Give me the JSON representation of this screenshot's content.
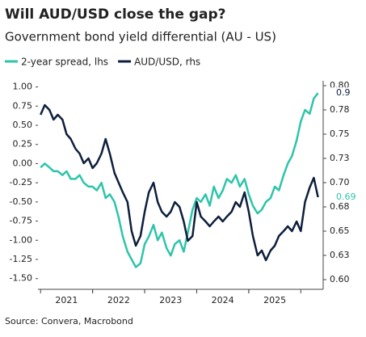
{
  "chart_data": {
    "type": "line",
    "title": "Will AUD/USD close the gap?",
    "subtitle": "Government bond yield differential (AU - US)",
    "source": "Source: Convera, Macrobond",
    "x": [
      2021,
      2021.08,
      2021.17,
      2021.25,
      2021.33,
      2021.42,
      2021.5,
      2021.58,
      2021.67,
      2021.75,
      2021.83,
      2021.92,
      2022,
      2022.08,
      2022.17,
      2022.25,
      2022.33,
      2022.42,
      2022.5,
      2022.58,
      2022.67,
      2022.75,
      2022.83,
      2022.92,
      2023,
      2023.08,
      2023.17,
      2023.25,
      2023.33,
      2023.42,
      2023.5,
      2023.58,
      2023.67,
      2023.75,
      2023.83,
      2023.92,
      2024,
      2024.08,
      2024.17,
      2024.25,
      2024.33,
      2024.42,
      2024.5,
      2024.58,
      2024.67,
      2024.75,
      2024.83,
      2024.92,
      2025,
      2025.08,
      2025.17,
      2025.25,
      2025.33,
      2025.42,
      2025.5,
      2025.58,
      2025.67,
      2025.75,
      2025.83,
      2025.92,
      2026,
      2026.08,
      2026.17,
      2026.25,
      2026.33
    ],
    "series": [
      {
        "name": "2-year spread, lhs",
        "color": "#2ec4a9",
        "axis": "y",
        "values": [
          -0.05,
          0,
          -0.05,
          -0.1,
          -0.1,
          -0.15,
          -0.1,
          -0.2,
          -0.2,
          -0.15,
          -0.25,
          -0.3,
          -0.3,
          -0.35,
          -0.25,
          -0.45,
          -0.4,
          -0.5,
          -0.7,
          -0.95,
          -1.15,
          -1.25,
          -1.35,
          -1.3,
          -1.05,
          -0.95,
          -0.8,
          -1.0,
          -0.9,
          -1.1,
          -1.2,
          -1.05,
          -1.0,
          -1.15,
          -0.9,
          -0.6,
          -0.45,
          -0.5,
          -0.4,
          -0.55,
          -0.3,
          -0.45,
          -0.35,
          -0.2,
          -0.25,
          -0.15,
          -0.3,
          -0.2,
          -0.4,
          -0.55,
          -0.65,
          -0.6,
          -0.5,
          -0.45,
          -0.3,
          -0.35,
          -0.15,
          0,
          0.1,
          0.3,
          0.55,
          0.7,
          0.65,
          0.85,
          0.92
        ]
      },
      {
        "name": "AUD/USD, rhs",
        "color": "#0d1f3c",
        "axis": "y2",
        "values": [
          0.77,
          0.78,
          0.775,
          0.765,
          0.77,
          0.765,
          0.75,
          0.745,
          0.735,
          0.73,
          0.72,
          0.725,
          0.715,
          0.72,
          0.73,
          0.745,
          0.73,
          0.71,
          0.7,
          0.69,
          0.68,
          0.65,
          0.635,
          0.645,
          0.67,
          0.69,
          0.7,
          0.68,
          0.67,
          0.665,
          0.67,
          0.68,
          0.675,
          0.66,
          0.64,
          0.645,
          0.68,
          0.665,
          0.66,
          0.655,
          0.66,
          0.665,
          0.66,
          0.665,
          0.67,
          0.68,
          0.675,
          0.69,
          0.67,
          0.645,
          0.625,
          0.63,
          0.62,
          0.63,
          0.635,
          0.645,
          0.65,
          0.655,
          0.65,
          0.66,
          0.65,
          0.68,
          0.695,
          0.705,
          0.685
        ]
      }
    ],
    "annotations": [
      {
        "text": "0.9",
        "color": "#0d1f3c"
      },
      {
        "text": "0.69",
        "color": "#2ec4a9"
      }
    ],
    "xlim": [
      2020.95,
      2026.43
    ],
    "xticks": [
      {
        "value": 2021.5,
        "label": "2021"
      },
      {
        "value": 2022.5,
        "label": "2022"
      },
      {
        "value": 2023.5,
        "label": "2023"
      },
      {
        "value": 2024.5,
        "label": "2024"
      },
      {
        "value": 2025.5,
        "label": "2025"
      }
    ],
    "ylim": [
      -1.64,
      1.08
    ],
    "yticks": [
      {
        "value": 1,
        "label": "1.00"
      },
      0.75,
      {
        "value": 0.5,
        "label": "0.50"
      },
      0.25,
      {
        "value": 0,
        "label": "0.00"
      },
      -0.25,
      {
        "value": -0.5,
        "label": "-0.50"
      },
      -0.75,
      {
        "value": -1,
        "label": "-1.00"
      },
      -1.25,
      {
        "value": -1.5,
        "label": "-1.50"
      }
    ],
    "y2lim": [
      0.59,
      0.805
    ],
    "y2ticks": [
      {
        "value": 0.6,
        "label": "0.60"
      },
      {
        "value": 0.625,
        "label": "0.63"
      },
      0.65,
      {
        "value": 0.675,
        "label": "0.68"
      },
      {
        "value": 0.7,
        "label": "0.70"
      },
      {
        "value": 0.725,
        "label": "0.73"
      },
      0.75,
      {
        "value": 0.775,
        "label": "0.78"
      },
      {
        "value": 0.8,
        "label": "0.80"
      }
    ],
    "grid": false
  }
}
